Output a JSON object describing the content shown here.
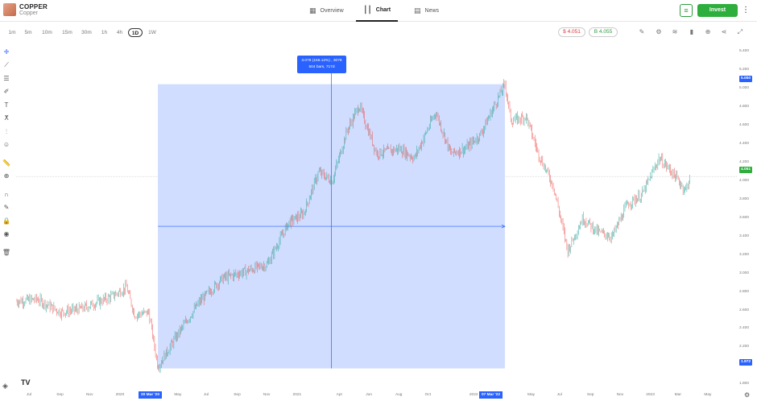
{
  "asset": {
    "name": "COPPER",
    "subtitle": "Copper"
  },
  "nav": {
    "tabs": [
      {
        "label": "Overview",
        "icon": "grid-icon"
      },
      {
        "label": "Chart",
        "icon": "candles-icon",
        "active": true
      },
      {
        "label": "News",
        "icon": "news-icon"
      }
    ]
  },
  "actions": {
    "invest_label": "Invest"
  },
  "timeframes": [
    "1m",
    "5m",
    "10m",
    "15m",
    "30m",
    "1h",
    "4h",
    "1D",
    "1W"
  ],
  "active_timeframe": "1D",
  "prices": {
    "sell": "$ 4.051",
    "buy": "B 4.055"
  },
  "measure": {
    "line1": "3.078 (156.12%) , 3078",
    "line2": "504 bars, 717d"
  },
  "price_tags": {
    "top": "5.050",
    "current": "4.051",
    "bottom": "1.972"
  },
  "date_tags": {
    "start": "20 Mar '20",
    "end": "07 Mar '22"
  },
  "colors": {
    "up": "#26a69a",
    "down": "#ef5350",
    "accent": "#2962ff",
    "measure_fill": "#cfdbff",
    "invest": "#2eae3c"
  },
  "chart_data": {
    "type": "candlestick",
    "y_ticks": [
      "5.400",
      "5.200",
      "5.000",
      "4.800",
      "4.600",
      "4.400",
      "4.200",
      "4.000",
      "3.800",
      "3.600",
      "3.400",
      "3.200",
      "3.000",
      "2.800",
      "2.600",
      "2.400",
      "2.200",
      "2.000",
      "1.800"
    ],
    "x_ticks": [
      "Jul",
      "Sep",
      "Nov",
      "2020",
      "May",
      "Jul",
      "Sep",
      "Nov",
      "2021",
      "Apr",
      "Jun",
      "Aug",
      "Oct",
      "2022",
      "May",
      "Jul",
      "Sep",
      "Nov",
      "2023",
      "Mar",
      "May"
    ],
    "ylim": [
      1.75,
      5.5
    ],
    "path_points": [
      [
        "2019-06-01",
        2.7
      ],
      [
        "2019-07-15",
        2.72
      ],
      [
        "2019-09-01",
        2.58
      ],
      [
        "2019-10-15",
        2.62
      ],
      [
        "2019-12-15",
        2.75
      ],
      [
        "2020-01-15",
        2.85
      ],
      [
        "2020-02-01",
        2.55
      ],
      [
        "2020-03-01",
        2.58
      ],
      [
        "2020-03-20",
        1.99
      ],
      [
        "2020-05-01",
        2.35
      ],
      [
        "2020-06-15",
        2.7
      ],
      [
        "2020-08-01",
        2.95
      ],
      [
        "2020-09-15",
        3.02
      ],
      [
        "2020-11-01",
        3.1
      ],
      [
        "2020-12-15",
        3.55
      ],
      [
        "2021-01-15",
        3.65
      ],
      [
        "2021-02-15",
        4.1
      ],
      [
        "2021-03-15",
        4.0
      ],
      [
        "2021-04-15",
        4.55
      ],
      [
        "2021-05-10",
        4.82
      ],
      [
        "2021-06-15",
        4.3
      ],
      [
        "2021-08-01",
        4.35
      ],
      [
        "2021-09-01",
        4.25
      ],
      [
        "2021-10-15",
        4.75
      ],
      [
        "2021-11-15",
        4.3
      ],
      [
        "2021-12-15",
        4.35
      ],
      [
        "2022-01-15",
        4.5
      ],
      [
        "2022-03-07",
        5.05
      ],
      [
        "2022-03-20",
        4.65
      ],
      [
        "2022-04-20",
        4.7
      ],
      [
        "2022-05-15",
        4.3
      ],
      [
        "2022-06-15",
        3.95
      ],
      [
        "2022-07-15",
        3.25
      ],
      [
        "2022-08-15",
        3.6
      ],
      [
        "2022-09-15",
        3.45
      ],
      [
        "2022-10-15",
        3.4
      ],
      [
        "2022-11-15",
        3.75
      ],
      [
        "2022-12-15",
        3.85
      ],
      [
        "2023-01-20",
        4.25
      ],
      [
        "2023-02-15",
        4.1
      ],
      [
        "2023-03-15",
        3.9
      ],
      [
        "2023-03-25",
        4.05
      ]
    ],
    "measure_range": {
      "start": "2020-03-20",
      "end": "2022-03-07",
      "low": 1.972,
      "high": 5.05
    },
    "current_price": 4.051
  }
}
